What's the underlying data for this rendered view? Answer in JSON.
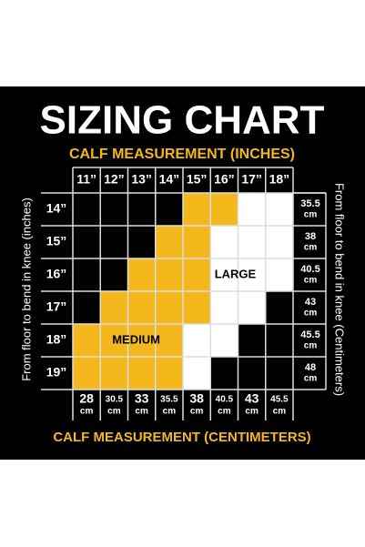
{
  "title": "SIZING CHART",
  "subtitle": "CALF MEASUREMENT (INCHES)",
  "left_axis_label": "From floor to bend in knee (inches)",
  "right_axis_label": "From floor to bend in knee (Centimeters)",
  "footer": "CALF MEASUREMENT (CENTIMETERS)",
  "column_headers": [
    "11”",
    "12”",
    "13”",
    "14”",
    "15”",
    "16”",
    "17”",
    "18”"
  ],
  "row_headers": [
    "14”",
    "15”",
    "16”",
    "17”",
    "18”",
    "19”"
  ],
  "row_cm": [
    {
      "value": "35.5",
      "unit": "cm"
    },
    {
      "value": "38",
      "unit": "cm"
    },
    {
      "value": "40.5",
      "unit": "cm"
    },
    {
      "value": "43",
      "unit": "cm"
    },
    {
      "value": "45.5",
      "unit": "cm"
    },
    {
      "value": "48",
      "unit": "cm"
    }
  ],
  "column_cm": [
    {
      "value": "28",
      "unit": "cm"
    },
    {
      "value": "30.5",
      "unit": "cm"
    },
    {
      "value": "33",
      "unit": "cm"
    },
    {
      "value": "35.5",
      "unit": "cm"
    },
    {
      "value": "38",
      "unit": "cm"
    },
    {
      "value": "40.5",
      "unit": "cm"
    },
    {
      "value": "43",
      "unit": "cm"
    },
    {
      "value": "45.5",
      "unit": "cm"
    }
  ],
  "size_labels": {
    "medium": "MEDIUM",
    "large": "LARGE"
  }
}
